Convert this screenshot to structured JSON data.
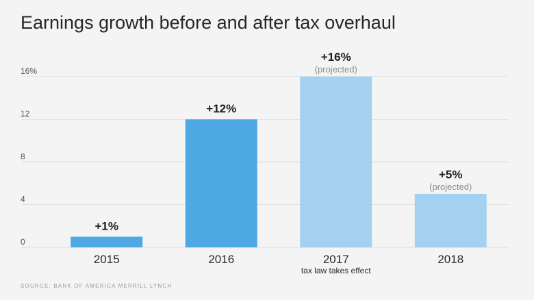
{
  "chart_data": {
    "type": "bar",
    "title": "Earnings growth before and after tax overhaul",
    "categories": [
      "2015",
      "2016",
      "2017",
      "2018"
    ],
    "values": [
      1,
      12,
      16,
      5
    ],
    "data_labels": [
      "+1%",
      "+12%",
      "+16%",
      "+5%"
    ],
    "data_sublabels": [
      "",
      "",
      "(projected)",
      "(projected)"
    ],
    "category_notes": [
      "",
      "",
      "tax law takes effect",
      ""
    ],
    "yticks": [
      0,
      4,
      8,
      12,
      16
    ],
    "ytick_labels": [
      "0",
      "4",
      "8",
      "12",
      "16%"
    ],
    "ylim": [
      0,
      16
    ],
    "xlabel": "",
    "ylabel": "",
    "grid": true,
    "colors": {
      "actual": "#4ea9e3",
      "projected": "#a3d1ef",
      "grid": "#dcdcdc",
      "label": "#1f1f1f",
      "sublabel": "#8c8c8c",
      "tick": "#555555"
    },
    "projected_flags": [
      false,
      false,
      true,
      true
    ]
  },
  "source": "Source: Bank of America Merrill Lynch"
}
